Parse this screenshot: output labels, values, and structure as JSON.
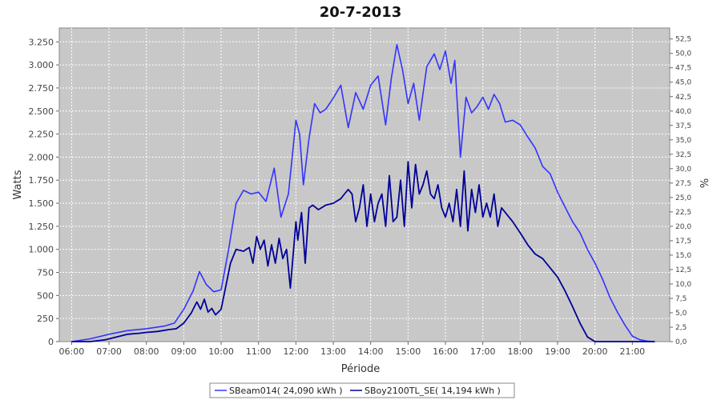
{
  "chart_data": {
    "type": "line",
    "title": "20-7-2013",
    "xlabel": "Période",
    "ylabel": "Watts",
    "y2label": "%",
    "x_ticks": [
      "06:00",
      "07:00",
      "08:00",
      "09:00",
      "10:00",
      "11:00",
      "12:00",
      "13:00",
      "14:00",
      "15:00",
      "16:00",
      "17:00",
      "18:00",
      "19:00",
      "20:00",
      "21:00"
    ],
    "xlim_hours": [
      5.67,
      22.0
    ],
    "ylim": [
      0,
      3400
    ],
    "y_ticks": [
      0,
      250,
      500,
      750,
      1000,
      1250,
      1500,
      1750,
      2000,
      2250,
      2500,
      2750,
      3000,
      3250
    ],
    "y_tick_labels": [
      "0",
      "250",
      "500",
      "750",
      "1.000",
      "1.250",
      "1.500",
      "1.750",
      "2.000",
      "2.250",
      "2.500",
      "2.750",
      "3.000",
      "3.250"
    ],
    "y2lim": [
      0,
      54.4
    ],
    "y2_ticks": [
      0,
      2.5,
      5,
      7.5,
      10,
      12.5,
      15,
      17.5,
      20,
      22.5,
      25,
      27.5,
      30,
      32.5,
      35,
      37.5,
      40,
      42.5,
      45,
      47.5,
      50,
      52.5
    ],
    "y2_tick_labels": [
      "0,0",
      "2,5",
      "5,0",
      "7,5",
      "10,0",
      "12,5",
      "15,0",
      "17,5",
      "20,0",
      "22,5",
      "25,0",
      "27,5",
      "30,0",
      "32,5",
      "35,0",
      "37,5",
      "40,0",
      "42,5",
      "45,0",
      "47,5",
      "50,0",
      "52,5"
    ],
    "grid": true,
    "legend_position": "bottom",
    "series": [
      {
        "name": "SBeam014( 24,090 kWh )",
        "color": "#3333ff",
        "x": [
          6.0,
          6.5,
          7.0,
          7.5,
          8.0,
          8.5,
          8.75,
          9.0,
          9.25,
          9.42,
          9.6,
          9.8,
          10.0,
          10.2,
          10.4,
          10.6,
          10.8,
          11.0,
          11.2,
          11.42,
          11.6,
          11.8,
          12.0,
          12.1,
          12.2,
          12.35,
          12.5,
          12.65,
          12.8,
          13.0,
          13.2,
          13.4,
          13.6,
          13.8,
          14.0,
          14.2,
          14.4,
          14.55,
          14.7,
          14.85,
          15.0,
          15.15,
          15.3,
          15.5,
          15.7,
          15.85,
          16.0,
          16.15,
          16.25,
          16.4,
          16.55,
          16.7,
          16.85,
          17.0,
          17.15,
          17.3,
          17.45,
          17.6,
          17.8,
          18.0,
          18.2,
          18.4,
          18.6,
          18.8,
          19.0,
          19.2,
          19.4,
          19.6,
          19.8,
          20.0,
          20.2,
          20.4,
          20.6,
          20.8,
          21.0,
          21.2,
          21.4,
          21.6
        ],
        "y": [
          0,
          30,
          80,
          120,
          140,
          170,
          200,
          350,
          550,
          760,
          620,
          540,
          560,
          1000,
          1500,
          1640,
          1600,
          1620,
          1520,
          1880,
          1350,
          1600,
          2400,
          2250,
          1700,
          2200,
          2580,
          2480,
          2520,
          2640,
          2780,
          2320,
          2700,
          2520,
          2780,
          2880,
          2350,
          2850,
          3220,
          2950,
          2580,
          2800,
          2400,
          2980,
          3120,
          2950,
          3150,
          2800,
          3050,
          2000,
          2650,
          2480,
          2550,
          2650,
          2520,
          2680,
          2580,
          2380,
          2400,
          2350,
          2220,
          2100,
          1900,
          1820,
          1620,
          1460,
          1300,
          1180,
          1000,
          850,
          680,
          480,
          320,
          180,
          60,
          20,
          5,
          0
        ]
      },
      {
        "name": "SBoy2100TL_SE( 14,194 kWh )",
        "color": "#000099",
        "x": [
          6.0,
          6.5,
          6.9,
          7.2,
          7.5,
          7.8,
          8.0,
          8.3,
          8.6,
          8.8,
          9.0,
          9.2,
          9.35,
          9.45,
          9.55,
          9.65,
          9.75,
          9.85,
          10.0,
          10.1,
          10.25,
          10.4,
          10.6,
          10.75,
          10.85,
          10.95,
          11.05,
          11.15,
          11.25,
          11.35,
          11.45,
          11.55,
          11.65,
          11.75,
          11.85,
          12.0,
          12.05,
          12.15,
          12.25,
          12.35,
          12.45,
          12.6,
          12.8,
          13.0,
          13.2,
          13.3,
          13.4,
          13.5,
          13.6,
          13.7,
          13.8,
          13.9,
          14.0,
          14.1,
          14.2,
          14.3,
          14.4,
          14.5,
          14.6,
          14.7,
          14.8,
          14.9,
          15.0,
          15.1,
          15.2,
          15.3,
          15.4,
          15.5,
          15.6,
          15.7,
          15.8,
          15.9,
          16.0,
          16.1,
          16.2,
          16.3,
          16.4,
          16.5,
          16.6,
          16.7,
          16.8,
          16.9,
          17.0,
          17.1,
          17.2,
          17.3,
          17.4,
          17.5,
          17.6,
          17.8,
          18.0,
          18.2,
          18.4,
          18.6,
          18.8,
          19.0,
          19.2,
          19.4,
          19.6,
          19.8,
          20.0,
          20.2,
          20.4,
          20.6,
          20.8,
          21.0,
          21.2,
          21.4,
          21.6
        ],
        "y": [
          0,
          0,
          20,
          50,
          80,
          90,
          100,
          110,
          130,
          140,
          200,
          310,
          430,
          350,
          460,
          320,
          360,
          290,
          350,
          550,
          850,
          1000,
          980,
          1020,
          850,
          1140,
          1000,
          1100,
          820,
          1050,
          850,
          1120,
          900,
          1000,
          580,
          1300,
          1100,
          1400,
          850,
          1450,
          1480,
          1430,
          1480,
          1500,
          1550,
          1600,
          1650,
          1600,
          1300,
          1450,
          1700,
          1250,
          1600,
          1300,
          1500,
          1600,
          1250,
          1800,
          1300,
          1350,
          1750,
          1250,
          1950,
          1450,
          1920,
          1600,
          1700,
          1850,
          1600,
          1550,
          1700,
          1450,
          1350,
          1500,
          1300,
          1650,
          1250,
          1850,
          1200,
          1650,
          1400,
          1700,
          1350,
          1500,
          1350,
          1600,
          1250,
          1450,
          1400,
          1300,
          1180,
          1050,
          950,
          900,
          800,
          700,
          550,
          380,
          200,
          50,
          0,
          0,
          0,
          0,
          0,
          0,
          0,
          0,
          0
        ]
      }
    ]
  }
}
